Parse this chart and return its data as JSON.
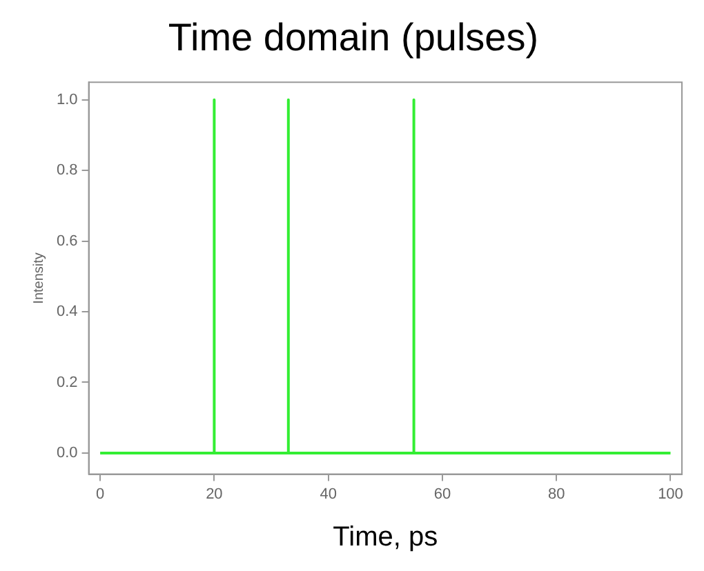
{
  "chart_data": {
    "type": "line",
    "title": "Time domain (pulses)",
    "xlabel": "Time, ps",
    "ylabel": "Intensity",
    "series": [
      {
        "color": "#33ee33",
        "x": [
          0,
          20,
          20,
          20,
          33,
          33,
          33,
          55,
          55,
          55,
          100
        ],
        "values": [
          0,
          0,
          1,
          0,
          0,
          1,
          0,
          0,
          1,
          0,
          0
        ]
      }
    ],
    "xlim": [
      -2,
      102
    ],
    "ylim": [
      -0.06,
      1.05
    ],
    "xticks": [
      0,
      20,
      40,
      60,
      80,
      100
    ],
    "yticks": [
      {
        "value": 0,
        "label": "0.0"
      },
      {
        "value": 0.2,
        "label": "0.2"
      },
      {
        "value": 0.4,
        "label": "0.4"
      },
      {
        "value": 0.6,
        "label": "0.6"
      },
      {
        "value": 0.8,
        "label": "0.8"
      },
      {
        "value": 1,
        "label": "1.0"
      }
    ],
    "grid": false,
    "legend": false,
    "marker": "none",
    "line_style": "solid"
  }
}
